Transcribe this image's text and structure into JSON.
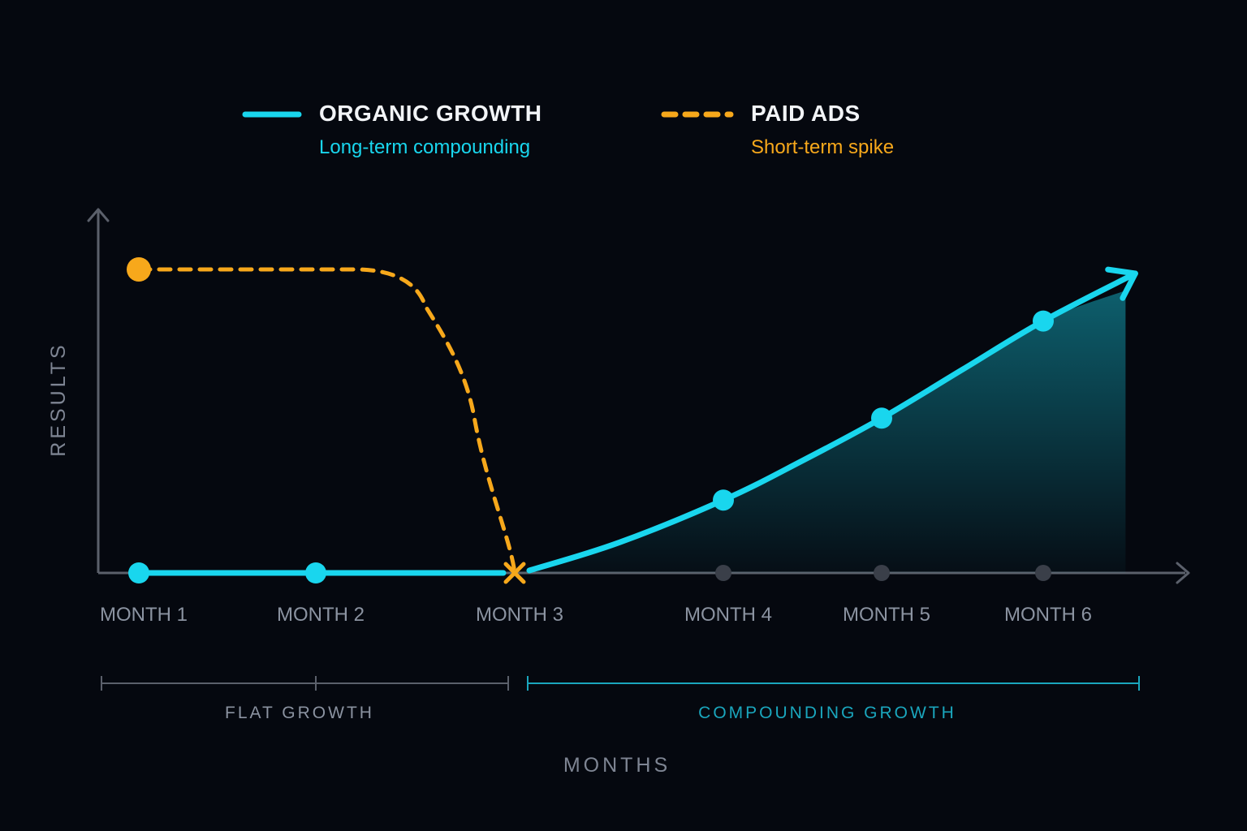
{
  "legend": {
    "organic": {
      "title": "ORGANIC GROWTH",
      "subtitle": "Long-term compounding"
    },
    "paid": {
      "title": "PAID ADS",
      "subtitle": "Short-term spike"
    }
  },
  "colors": {
    "organic": "#19d6ee",
    "paid": "#f7a81b",
    "axis": "#5b606b",
    "muted_label": "#8b93a1",
    "compounding": "#1aa6bd",
    "grey_marker": "#3a3f49",
    "background": "#05080f"
  },
  "axes": {
    "ylabel": "RESULTS",
    "xlabel": "MONTHS"
  },
  "phases": [
    {
      "label": "FLAT GROWTH",
      "from": 1,
      "to": 3
    },
    {
      "label": "COMPOUNDING GROWTH",
      "from": 3,
      "to": 6.5
    }
  ],
  "chart_data": {
    "type": "line",
    "categories": [
      "MONTH 1",
      "MONTH 2",
      "MONTH 3",
      "MONTH 4",
      "MONTH 5",
      "MONTH 6"
    ],
    "x": [
      1,
      2,
      3,
      4,
      5,
      6
    ],
    "xlim": [
      0.78,
      6.8
    ],
    "ylim": [
      0,
      1
    ],
    "xlabel": "MONTHS",
    "ylabel": "RESULTS",
    "legend_position": "top",
    "series": [
      {
        "name": "ORGANIC GROWTH",
        "style": "solid",
        "markers": [
          {
            "x": 1,
            "y": 0
          },
          {
            "x": 2,
            "y": 0
          },
          {
            "x": 4,
            "y": 0.24
          },
          {
            "x": 5,
            "y": 0.51
          },
          {
            "x": 6,
            "y": 0.83
          }
        ],
        "curve": [
          {
            "x": 1,
            "y": 0
          },
          {
            "x": 3,
            "y": 0
          },
          {
            "x": 3.5,
            "y": 0.1
          },
          {
            "x": 4,
            "y": 0.24
          },
          {
            "x": 4.5,
            "y": 0.37
          },
          {
            "x": 5,
            "y": 0.51
          },
          {
            "x": 5.5,
            "y": 0.67
          },
          {
            "x": 6,
            "y": 0.83
          },
          {
            "x": 6.6,
            "y": 1.0
          }
        ],
        "end_arrow": true,
        "area_fill_from_x": 3
      },
      {
        "name": "PAID ADS",
        "style": "dashed",
        "markers": [
          {
            "x": 1,
            "y": 1.0
          }
        ],
        "curve": [
          {
            "x": 1,
            "y": 1.0
          },
          {
            "x": 2.2,
            "y": 1.0
          },
          {
            "x": 2.55,
            "y": 0.88
          },
          {
            "x": 2.8,
            "y": 0.5
          },
          {
            "x": 3,
            "y": 0
          }
        ],
        "end_marker": "cross"
      }
    ],
    "empty_markers": [
      {
        "x": 4,
        "y": 0
      },
      {
        "x": 5,
        "y": 0
      },
      {
        "x": 6,
        "y": 0
      }
    ]
  }
}
